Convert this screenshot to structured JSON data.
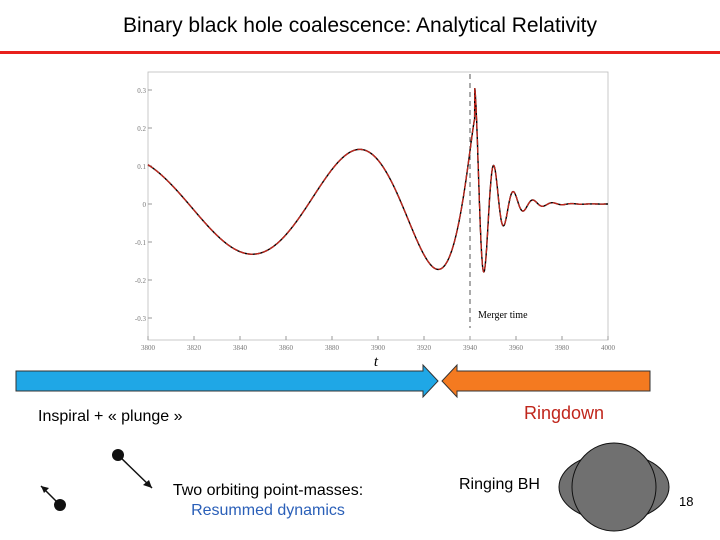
{
  "slide": {
    "title": "Binary black hole coalescence: Analytical Relativity",
    "page_number": "18",
    "accent_color": "#e8201c"
  },
  "labels": {
    "inspiral": "Inspiral + « plunge »",
    "ringdown": "Ringdown",
    "orbiting_line1": "Two orbiting point-masses:",
    "orbiting_line2": "Resummed dynamics",
    "ringing_bh": "Ringing BH"
  },
  "arrows": {
    "inspiral_color": "#1fa7e6",
    "ringdown_color": "#f47a20"
  },
  "chart_data": {
    "type": "line",
    "xlabel": "t",
    "xlim": [
      3800,
      4000
    ],
    "ylim": [
      -0.3,
      0.3
    ],
    "x_ticks": [
      "3800",
      "3820",
      "3840",
      "3860",
      "3880",
      "3900",
      "3920",
      "3940",
      "3960",
      "3980",
      "4000"
    ],
    "y_ticks": [
      "0.3",
      "0.2",
      "0.1",
      "0",
      "-0.1",
      "-0.2",
      "-0.3"
    ],
    "annotation": "Merger time",
    "merger_time": 3940,
    "series": [
      {
        "color": "#c0261c"
      },
      {
        "color": "#000000"
      }
    ]
  }
}
